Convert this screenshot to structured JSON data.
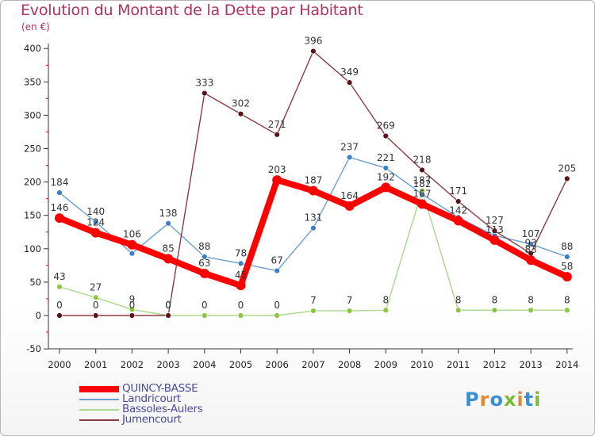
{
  "title": "Evolution du Montant de la Dette par Habitant",
  "subtitle": "(en €)",
  "logo": [
    "P",
    "r",
    "o",
    "x",
    "i",
    "t",
    "i"
  ],
  "chart_data": {
    "type": "line",
    "title": "Evolution du Montant de la Dette par Habitant",
    "ylabel": "(en €)",
    "xlabel": "",
    "categories": [
      "2000",
      "2001",
      "2002",
      "2003",
      "2004",
      "2005",
      "2006",
      "2007",
      "2008",
      "2009",
      "2010",
      "2011",
      "2012",
      "2013",
      "2014"
    ],
    "ylim": [
      -50,
      400
    ],
    "yticks": [
      "-50",
      "0",
      "50",
      "100",
      "150",
      "200",
      "250",
      "300",
      "350",
      "400"
    ],
    "grid": false,
    "legend_position": "bottom-left",
    "series": [
      {
        "name": "Landricourt",
        "color": "#6a9fd4",
        "marker": "#3a7ec4",
        "values": [
          184,
          140,
          93,
          138,
          88,
          78,
          67,
          131,
          237,
          221,
          182,
          147,
          120,
          107,
          88
        ],
        "labels": [
          "184",
          "140",
          "",
          "138",
          "88",
          "78",
          "67",
          "131",
          "237",
          "221",
          "182",
          "",
          "",
          "107",
          "88"
        ]
      },
      {
        "name": "Bassoles-Aulers",
        "color": "#a8d88a",
        "marker": "#8cc63f",
        "values": [
          43,
          27,
          9,
          0,
          0,
          0,
          0,
          7,
          7,
          8,
          187,
          8,
          8,
          8,
          8
        ],
        "labels": [
          "43",
          "27",
          "9",
          "0",
          "0",
          "0",
          "0",
          "7",
          "7",
          "8",
          "187",
          "8",
          "8",
          "8",
          "8"
        ]
      },
      {
        "name": "Jumencourt",
        "color": "#8b3a44",
        "marker": "#5a1418",
        "values": [
          0,
          0,
          0,
          0,
          333,
          302,
          271,
          396,
          349,
          269,
          218,
          171,
          127,
          93,
          205
        ],
        "labels": [
          "0",
          "0",
          "0",
          "0",
          "333",
          "302",
          "271",
          "396",
          "349",
          "269",
          "218",
          "171",
          "127",
          "93",
          "205"
        ]
      },
      {
        "name": "QUINCY-BASSE",
        "color": "#ff0000",
        "marker": "#ff0000",
        "values": [
          146,
          124,
          106,
          85,
          63,
          45,
          203,
          187,
          164,
          192,
          167,
          142,
          113,
          83,
          58
        ],
        "labels": [
          "146",
          "124",
          "106",
          "85",
          "63",
          "45",
          "203",
          "187",
          "164",
          "192",
          "167",
          "142",
          "113",
          "83",
          "58"
        ]
      }
    ],
    "legend": [
      "QUINCY-BASSE",
      "Landricourt",
      "Bassoles-Aulers",
      "Jumencourt"
    ]
  }
}
